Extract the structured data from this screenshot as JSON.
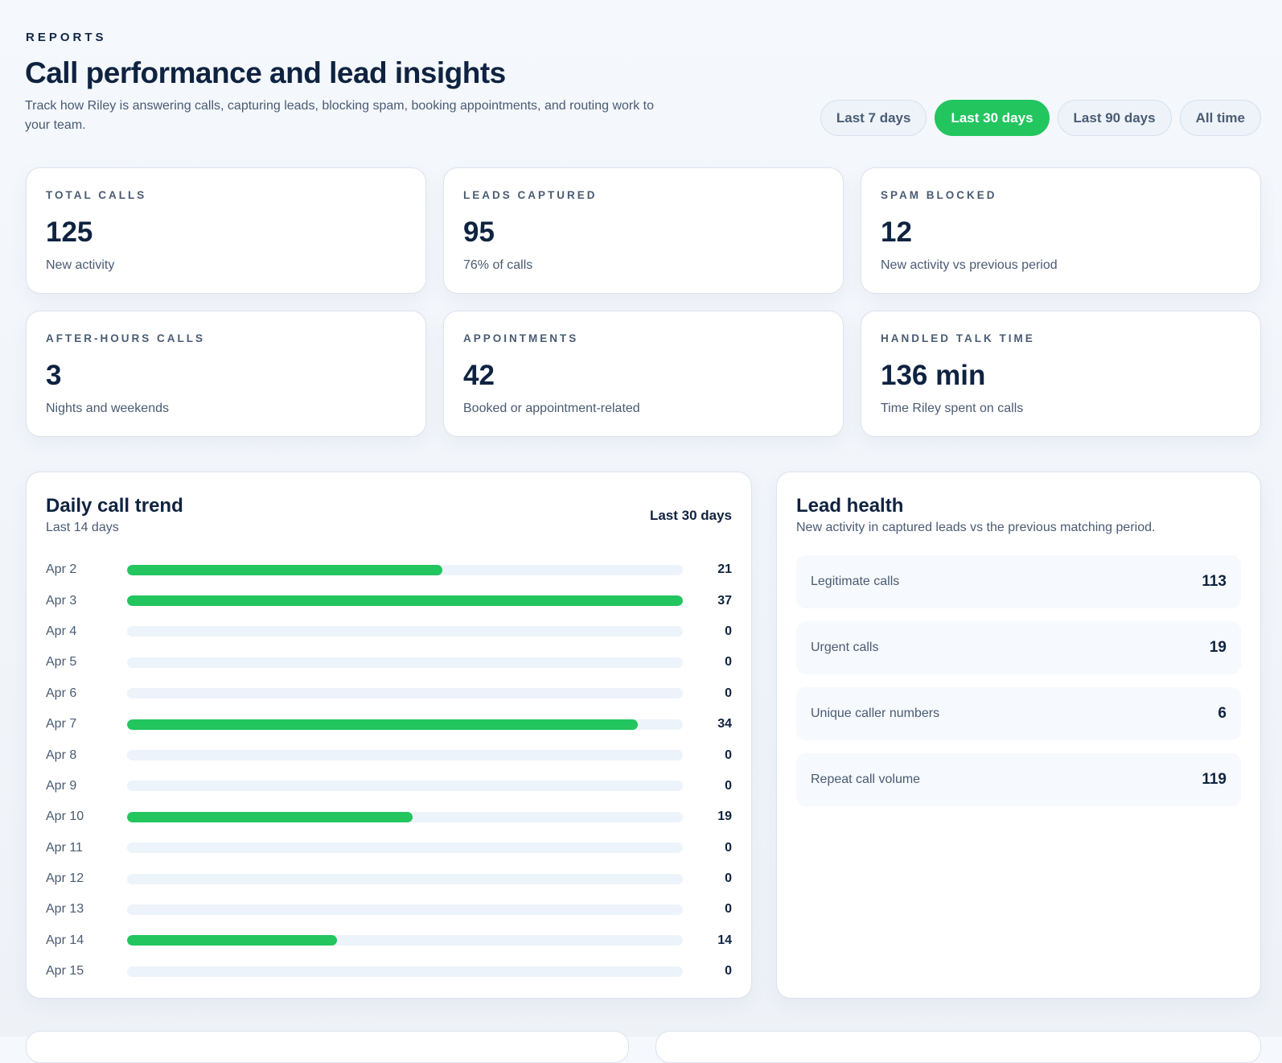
{
  "header": {
    "eyebrow": "REPORTS",
    "title": "Call performance and lead insights",
    "subtitle": "Track how Riley is answering calls, capturing leads, blocking spam, booking appointments, and routing work to your team."
  },
  "ranges": [
    {
      "label": "Last 7 days",
      "active": false
    },
    {
      "label": "Last 30 days",
      "active": true
    },
    {
      "label": "Last 90 days",
      "active": false
    },
    {
      "label": "All time",
      "active": false
    }
  ],
  "colors": {
    "accent": "#22c55e",
    "text": "#0f2340",
    "muted": "#4a5b73",
    "track": "#edf3fa"
  },
  "stats": [
    {
      "label": "TOTAL CALLS",
      "value": "125",
      "note": "New activity"
    },
    {
      "label": "LEADS CAPTURED",
      "value": "95",
      "note": "76% of calls"
    },
    {
      "label": "SPAM BLOCKED",
      "value": "12",
      "note": "New activity vs previous period"
    },
    {
      "label": "AFTER-HOURS CALLS",
      "value": "3",
      "note": "Nights and weekends"
    },
    {
      "label": "APPOINTMENTS",
      "value": "42",
      "note": "Booked or appointment-related"
    },
    {
      "label": "HANDLED TALK TIME",
      "value": "136 min",
      "note": "Time Riley spent on calls"
    }
  ],
  "trend": {
    "title": "Daily call trend",
    "subtitle": "Last 14 days",
    "range": "Last 30 days"
  },
  "chart_data": {
    "type": "bar",
    "orientation": "horizontal",
    "categories": [
      "Apr 2",
      "Apr 3",
      "Apr 4",
      "Apr 5",
      "Apr 6",
      "Apr 7",
      "Apr 8",
      "Apr 9",
      "Apr 10",
      "Apr 11",
      "Apr 12",
      "Apr 13",
      "Apr 14",
      "Apr 15"
    ],
    "values": [
      21,
      37,
      0,
      0,
      0,
      34,
      0,
      0,
      19,
      0,
      0,
      0,
      14,
      0
    ]
  },
  "lead": {
    "title": "Lead health",
    "subtitle": "New activity in captured leads vs the previous matching period.",
    "metrics": [
      {
        "label": "Legitimate calls",
        "value": "113"
      },
      {
        "label": "Urgent calls",
        "value": "19"
      },
      {
        "label": "Unique caller numbers",
        "value": "6"
      },
      {
        "label": "Repeat call volume",
        "value": "119"
      }
    ]
  }
}
